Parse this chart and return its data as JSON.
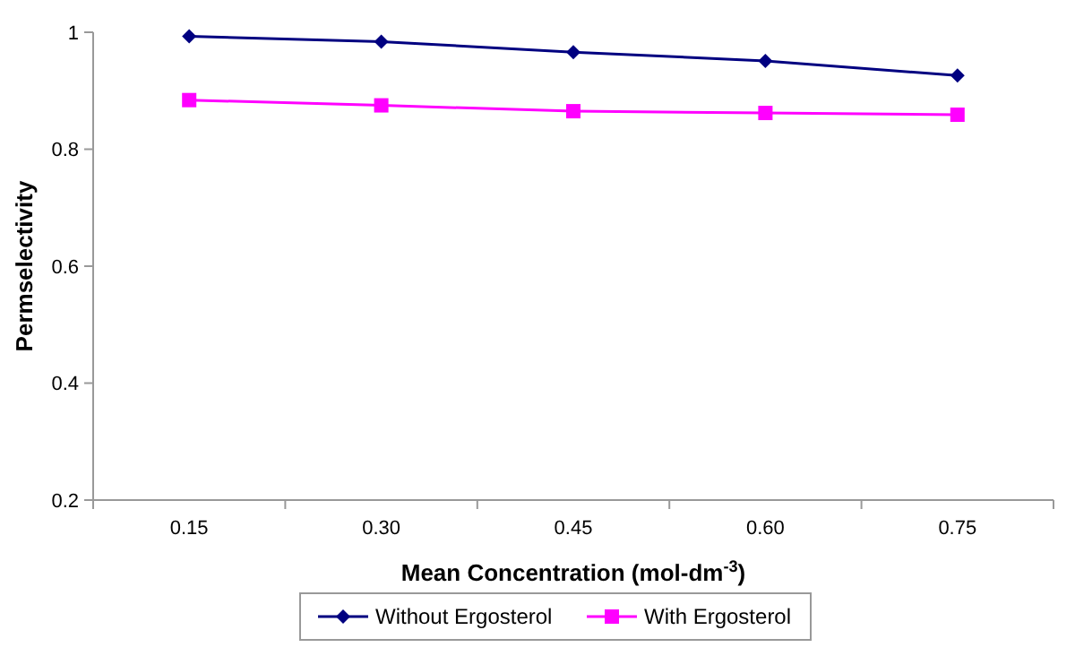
{
  "chart_data": {
    "type": "line",
    "xlabel": "Mean Concentration (mol-dm$^{-3}$)",
    "ylabel": "Permselectivity",
    "categories": [
      "0.15",
      "0.30",
      "0.45",
      "0.60",
      "0.75"
    ],
    "ylim": [
      0.2,
      1
    ],
    "yticks": [
      0.2,
      0.4,
      0.6,
      0.8,
      1
    ],
    "grid": false,
    "legend": "bottom",
    "series": [
      {
        "name": "Without Ergosterol",
        "color": "#000080",
        "marker": "diamond",
        "values": [
          0.993,
          0.984,
          0.966,
          0.951,
          0.926
        ]
      },
      {
        "name": "With Ergosterol",
        "color": "#ff00ff",
        "marker": "square",
        "values": [
          0.884,
          0.875,
          0.865,
          0.862,
          0.859
        ]
      }
    ]
  }
}
